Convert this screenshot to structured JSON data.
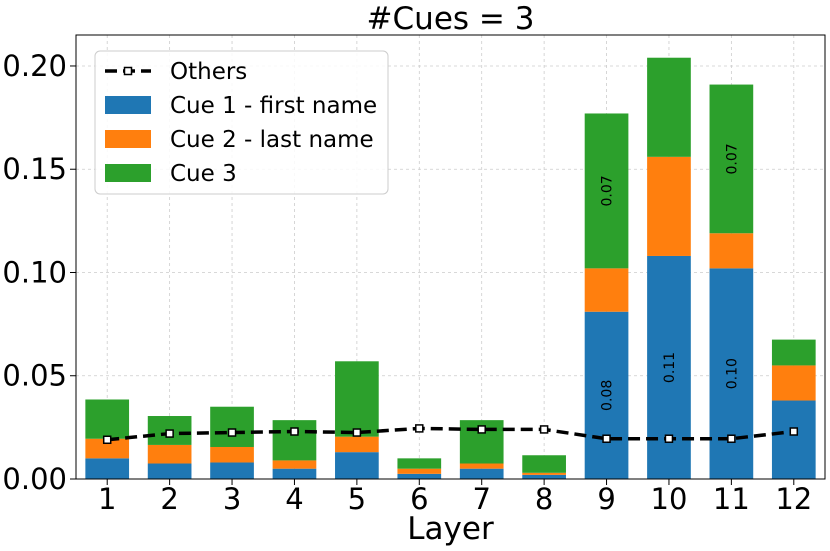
{
  "chart_data": {
    "type": "bar",
    "stacked": true,
    "title": "#Cues = 3",
    "xlabel": "Layer",
    "ylabel": "",
    "categories": [
      "1",
      "2",
      "3",
      "4",
      "5",
      "6",
      "7",
      "8",
      "9",
      "10",
      "11",
      "12"
    ],
    "ylim": [
      0,
      0.215
    ],
    "yticks": [
      "0.00",
      "0.05",
      "0.10",
      "0.15",
      "0.20"
    ],
    "ytick_values": [
      0,
      0.05,
      0.1,
      0.15,
      0.2
    ],
    "grid": true,
    "legend_position": "top-left",
    "series": [
      {
        "name": "Cue 1 - first name",
        "color": "#1f77b4",
        "values": [
          0.01,
          0.0075,
          0.008,
          0.005,
          0.013,
          0.0025,
          0.005,
          0.002,
          0.081,
          0.108,
          0.102,
          0.038
        ]
      },
      {
        "name": "Cue 2 - last name",
        "color": "#ff7f0e",
        "values": [
          0.0095,
          0.009,
          0.0075,
          0.004,
          0.0075,
          0.0025,
          0.0025,
          0.001,
          0.021,
          0.048,
          0.017,
          0.017
        ]
      },
      {
        "name": "Cue 3",
        "color": "#2ca02c",
        "values": [
          0.019,
          0.014,
          0.0195,
          0.0195,
          0.0365,
          0.005,
          0.021,
          0.0085,
          0.075,
          0.048,
          0.072,
          0.0125
        ]
      }
    ],
    "line": {
      "name": "Others",
      "color": "#000000",
      "values": [
        0.019,
        0.022,
        0.0225,
        0.023,
        0.0225,
        0.0245,
        0.024,
        0.024,
        0.0195,
        0.0195,
        0.0195,
        0.023
      ]
    },
    "annotations": [
      {
        "category": "9",
        "series": "Cue 1 - first name",
        "text": "0.08"
      },
      {
        "category": "9",
        "series": "Cue 3",
        "text": "0.07"
      },
      {
        "category": "10",
        "series": "Cue 1 - first name",
        "text": "0.11"
      },
      {
        "category": "11",
        "series": "Cue 1 - first name",
        "text": "0.10"
      },
      {
        "category": "11",
        "series": "Cue 3",
        "text": "0.07"
      }
    ]
  }
}
